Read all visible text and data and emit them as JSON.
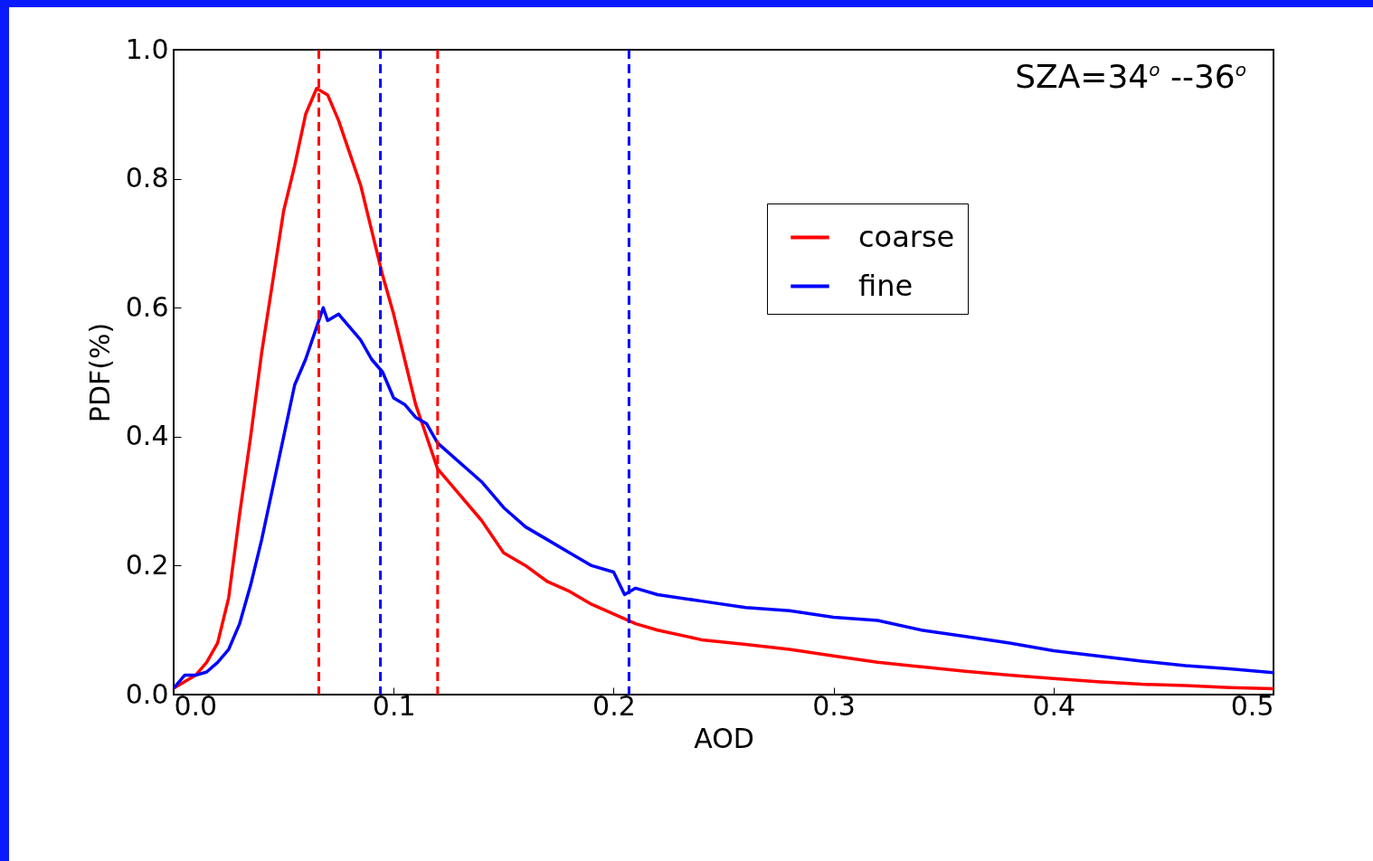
{
  "chart_data": {
    "type": "line",
    "xlabel": "AOD",
    "ylabel": "PDF(%)",
    "xlim": [
      0.0,
      0.5
    ],
    "xticks": [
      {
        "value": 0,
        "label": "0.0"
      },
      {
        "value": 0.1,
        "label": "0.1"
      },
      {
        "value": 0.2,
        "label": "0.2"
      },
      {
        "value": 0.3,
        "label": "0.3"
      },
      {
        "value": 0.4,
        "label": "0.4"
      },
      {
        "value": 0.5,
        "label": "0.5"
      }
    ],
    "ylim": [
      0.0,
      1.0
    ],
    "yticks": [
      {
        "value": 0,
        "label": "0.0"
      },
      0.2,
      0.4,
      0.6,
      0.8,
      {
        "value": 1,
        "label": "1.0"
      }
    ],
    "grid": false,
    "legend": "top right",
    "line_style": "solid",
    "marker": "none",
    "annotations": [
      "SZA=34$^{o}$ --36$^{o}$"
    ],
    "ref_lines": [
      {
        "axis": "x",
        "value": 0.066,
        "color": "#ff0000",
        "line_style": "dashed"
      },
      {
        "axis": "x",
        "value": 0.094,
        "color": "#0000ff",
        "line_style": "dashed"
      },
      {
        "axis": "x",
        "value": 0.12,
        "color": "#ff0000",
        "line_style": "dashed"
      },
      {
        "axis": "x",
        "value": 0.207,
        "color": "#0000ff",
        "line_style": "dashed"
      }
    ],
    "series": [
      {
        "name": "coarse",
        "color": "#ff0000",
        "x": [
          0,
          0.005,
          0.01,
          0.015,
          0.02,
          0.025,
          0.03,
          0.035,
          0.04,
          0.045,
          0.05,
          0.055,
          0.06,
          0.065,
          0.07,
          0.075,
          0.08,
          0.085,
          0.09,
          0.095,
          0.1,
          0.105,
          0.11,
          0.115,
          0.12,
          0.13,
          0.14,
          0.15,
          0.16,
          0.17,
          0.18,
          0.19,
          0.2,
          0.21,
          0.22,
          0.24,
          0.26,
          0.28,
          0.3,
          0.32,
          0.34,
          0.36,
          0.38,
          0.4,
          0.42,
          0.44,
          0.46,
          0.48,
          0.5
        ],
        "values": [
          0.01,
          0.02,
          0.03,
          0.05,
          0.08,
          0.15,
          0.28,
          0.4,
          0.53,
          0.64,
          0.75,
          0.82,
          0.9,
          0.94,
          0.93,
          0.89,
          0.84,
          0.79,
          0.72,
          0.65,
          0.59,
          0.52,
          0.45,
          0.4,
          0.35,
          0.31,
          0.27,
          0.22,
          0.2,
          0.175,
          0.16,
          0.14,
          0.125,
          0.11,
          0.1,
          0.085,
          0.078,
          0.07,
          0.06,
          0.05,
          0.043,
          0.036,
          0.03,
          0.025,
          0.02,
          0.016,
          0.014,
          0.011,
          0.009
        ]
      },
      {
        "name": "fine",
        "color": "#0000ff",
        "x": [
          0,
          0.005,
          0.01,
          0.015,
          0.02,
          0.025,
          0.03,
          0.035,
          0.04,
          0.045,
          0.05,
          0.055,
          0.06,
          0.065,
          0.068,
          0.07,
          0.075,
          0.08,
          0.085,
          0.09,
          0.095,
          0.1,
          0.105,
          0.11,
          0.115,
          0.12,
          0.13,
          0.14,
          0.15,
          0.16,
          0.17,
          0.18,
          0.19,
          0.2,
          0.205,
          0.21,
          0.22,
          0.24,
          0.26,
          0.28,
          0.3,
          0.32,
          0.34,
          0.36,
          0.38,
          0.4,
          0.42,
          0.44,
          0.46,
          0.48,
          0.5
        ],
        "values": [
          0.01,
          0.03,
          0.03,
          0.035,
          0.05,
          0.07,
          0.11,
          0.17,
          0.24,
          0.32,
          0.4,
          0.48,
          0.52,
          0.57,
          0.6,
          0.58,
          0.59,
          0.57,
          0.55,
          0.52,
          0.5,
          0.46,
          0.45,
          0.43,
          0.42,
          0.39,
          0.36,
          0.33,
          0.29,
          0.26,
          0.24,
          0.22,
          0.2,
          0.19,
          0.155,
          0.165,
          0.155,
          0.145,
          0.135,
          0.13,
          0.12,
          0.115,
          0.1,
          0.09,
          0.08,
          0.068,
          0.06,
          0.052,
          0.045,
          0.04,
          0.034
        ]
      }
    ]
  }
}
